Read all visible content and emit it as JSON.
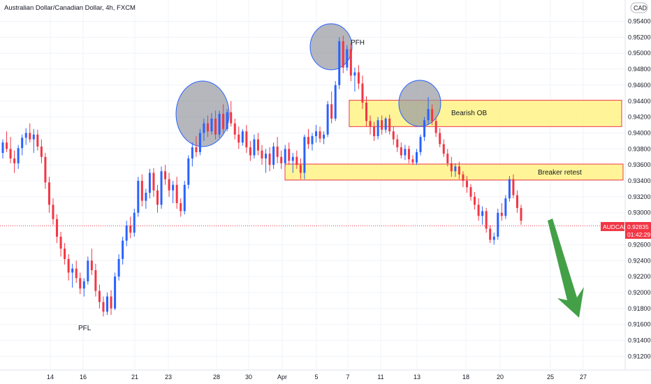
{
  "header": {
    "symbol_title": "Australian Dollar/Canadian Dollar, 4h, FXCM",
    "currency_badge": "CAD"
  },
  "price_tag": {
    "symbol": "AUDCAD",
    "price": "0.92835",
    "countdown": "01:42:29",
    "color": "#f23645"
  },
  "annotations": {
    "pfh": "PFH",
    "pfl": "PFL",
    "bearish_ob": "Bearish OB",
    "breaker_retest": "Breaker retest"
  },
  "colors": {
    "up": "#2962ff",
    "down": "#f23645",
    "zone_fill": "#fff176",
    "zone_border": "#f23645",
    "circle_fill": "#9598a1",
    "circle_stroke": "#2962ff",
    "arrow": "#43a047"
  },
  "chart_data": {
    "type": "candlestick",
    "title": "Australian Dollar/Canadian Dollar, 4h, FXCM",
    "xlabel": "",
    "ylabel": "",
    "ylim": [
      0.9115,
      0.9565
    ],
    "y_ticks": [
      "0.95400",
      "0.95200",
      "0.95000",
      "0.94800",
      "0.94600",
      "0.94400",
      "0.94200",
      "0.94000",
      "0.93800",
      "0.93600",
      "0.93400",
      "0.93200",
      "0.93000",
      "0.92600",
      "0.92400",
      "0.92200",
      "0.92000",
      "0.91800",
      "0.91600",
      "0.91400",
      "0.91200"
    ],
    "x_ticks": [
      "14",
      "16",
      "21",
      "23",
      "28",
      "30",
      "Apr",
      "5",
      "7",
      "11",
      "13",
      "18",
      "20",
      "25",
      "27"
    ],
    "current_price": 0.92835,
    "zones": [
      {
        "label": "Bearish OB",
        "from": 0.9408,
        "to": 0.9441
      },
      {
        "label": "Breaker retest",
        "from": 0.9341,
        "to": 0.9361
      }
    ],
    "candles": [
      [
        0.9375,
        0.9392,
        0.9368,
        0.9388
      ],
      [
        0.9388,
        0.9402,
        0.9376,
        0.938
      ],
      [
        0.938,
        0.9395,
        0.9362,
        0.9368
      ],
      [
        0.9368,
        0.9378,
        0.935,
        0.9362
      ],
      [
        0.9362,
        0.9385,
        0.9355,
        0.9381
      ],
      [
        0.9381,
        0.9398,
        0.9372,
        0.9394
      ],
      [
        0.9394,
        0.9406,
        0.9385,
        0.94
      ],
      [
        0.94,
        0.9412,
        0.9388,
        0.9392
      ],
      [
        0.9392,
        0.9405,
        0.9375,
        0.9398
      ],
      [
        0.9398,
        0.9404,
        0.9378,
        0.9383
      ],
      [
        0.9383,
        0.9392,
        0.9362,
        0.937
      ],
      [
        0.937,
        0.9375,
        0.933,
        0.9338
      ],
      [
        0.9338,
        0.9345,
        0.93,
        0.931
      ],
      [
        0.931,
        0.9318,
        0.9285,
        0.9292
      ],
      [
        0.9292,
        0.9298,
        0.9262,
        0.927
      ],
      [
        0.927,
        0.9276,
        0.9245,
        0.9255
      ],
      [
        0.9255,
        0.9262,
        0.9235,
        0.9242
      ],
      [
        0.9242,
        0.9248,
        0.9215,
        0.9225
      ],
      [
        0.9225,
        0.9236,
        0.9206,
        0.923
      ],
      [
        0.923,
        0.924,
        0.9212,
        0.9218
      ],
      [
        0.9218,
        0.9225,
        0.9198,
        0.9205
      ],
      [
        0.9205,
        0.9218,
        0.9195,
        0.9214
      ],
      [
        0.9214,
        0.9245,
        0.921,
        0.924
      ],
      [
        0.924,
        0.9255,
        0.9222,
        0.9228
      ],
      [
        0.9228,
        0.9236,
        0.9195,
        0.9202
      ],
      [
        0.9202,
        0.921,
        0.918,
        0.9188
      ],
      [
        0.9188,
        0.9195,
        0.917,
        0.9176
      ],
      [
        0.9176,
        0.92,
        0.9172,
        0.9195
      ],
      [
        0.9195,
        0.9203,
        0.9172,
        0.918
      ],
      [
        0.918,
        0.9225,
        0.9178,
        0.922
      ],
      [
        0.922,
        0.9248,
        0.9215,
        0.9242
      ],
      [
        0.9242,
        0.927,
        0.9235,
        0.9265
      ],
      [
        0.9265,
        0.929,
        0.9258,
        0.9284
      ],
      [
        0.9284,
        0.9295,
        0.9268,
        0.9275
      ],
      [
        0.9275,
        0.9305,
        0.927,
        0.93
      ],
      [
        0.93,
        0.9345,
        0.9295,
        0.934
      ],
      [
        0.934,
        0.9348,
        0.9308,
        0.9315
      ],
      [
        0.9315,
        0.933,
        0.9305,
        0.9325
      ],
      [
        0.9325,
        0.9355,
        0.9318,
        0.935
      ],
      [
        0.935,
        0.9356,
        0.932,
        0.9328
      ],
      [
        0.9328,
        0.9335,
        0.93,
        0.931
      ],
      [
        0.931,
        0.9358,
        0.9305,
        0.9352
      ],
      [
        0.9352,
        0.936,
        0.9335,
        0.9342
      ],
      [
        0.9342,
        0.935,
        0.932,
        0.9328
      ],
      [
        0.9328,
        0.934,
        0.9312,
        0.9335
      ],
      [
        0.9335,
        0.9345,
        0.9305,
        0.9312
      ],
      [
        0.9312,
        0.9318,
        0.9295,
        0.9302
      ],
      [
        0.9302,
        0.934,
        0.9298,
        0.9335
      ],
      [
        0.9335,
        0.9372,
        0.933,
        0.9368
      ],
      [
        0.9368,
        0.9388,
        0.9358,
        0.9382
      ],
      [
        0.9382,
        0.9396,
        0.937,
        0.9376
      ],
      [
        0.9376,
        0.9405,
        0.9372,
        0.94
      ],
      [
        0.94,
        0.9418,
        0.939,
        0.9412
      ],
      [
        0.9412,
        0.9422,
        0.9395,
        0.9402
      ],
      [
        0.9402,
        0.9425,
        0.9398,
        0.9418
      ],
      [
        0.9418,
        0.9428,
        0.9392,
        0.9398
      ],
      [
        0.9398,
        0.9428,
        0.9394,
        0.9424
      ],
      [
        0.9424,
        0.9436,
        0.94,
        0.9405
      ],
      [
        0.9405,
        0.943,
        0.9402,
        0.9426
      ],
      [
        0.9426,
        0.944,
        0.9408,
        0.9412
      ],
      [
        0.9412,
        0.9418,
        0.9392,
        0.9398
      ],
      [
        0.9398,
        0.9408,
        0.938,
        0.9388
      ],
      [
        0.9388,
        0.9405,
        0.9384,
        0.9402
      ],
      [
        0.9402,
        0.941,
        0.9375,
        0.9382
      ],
      [
        0.9382,
        0.939,
        0.9365,
        0.9372
      ],
      [
        0.9372,
        0.9398,
        0.9368,
        0.9392
      ],
      [
        0.9392,
        0.94,
        0.9372,
        0.9378
      ],
      [
        0.9378,
        0.9385,
        0.936,
        0.9368
      ],
      [
        0.9368,
        0.938,
        0.935,
        0.9374
      ],
      [
        0.9374,
        0.9382,
        0.9352,
        0.936
      ],
      [
        0.936,
        0.9388,
        0.9355,
        0.9383
      ],
      [
        0.9383,
        0.9395,
        0.9362,
        0.937
      ],
      [
        0.937,
        0.9378,
        0.9355,
        0.9362
      ],
      [
        0.9362,
        0.9385,
        0.9358,
        0.938
      ],
      [
        0.938,
        0.9388,
        0.936,
        0.9365
      ],
      [
        0.9365,
        0.9375,
        0.935,
        0.937
      ],
      [
        0.937,
        0.9378,
        0.9355,
        0.936
      ],
      [
        0.936,
        0.9368,
        0.9342,
        0.935
      ],
      [
        0.935,
        0.9398,
        0.9342,
        0.9395
      ],
      [
        0.9395,
        0.9405,
        0.938,
        0.9386
      ],
      [
        0.9386,
        0.94,
        0.9378,
        0.9396
      ],
      [
        0.9396,
        0.941,
        0.9388,
        0.9402
      ],
      [
        0.9402,
        0.9408,
        0.9388,
        0.9393
      ],
      [
        0.9393,
        0.9402,
        0.9386,
        0.9398
      ],
      [
        0.9398,
        0.944,
        0.9395,
        0.9436
      ],
      [
        0.9436,
        0.9452,
        0.9412,
        0.9418
      ],
      [
        0.9418,
        0.9465,
        0.9415,
        0.946
      ],
      [
        0.946,
        0.952,
        0.9455,
        0.9515
      ],
      [
        0.9515,
        0.9522,
        0.9475,
        0.9482
      ],
      [
        0.9482,
        0.951,
        0.9478,
        0.9505
      ],
      [
        0.9505,
        0.9512,
        0.9465,
        0.9472
      ],
      [
        0.9472,
        0.9482,
        0.9452,
        0.9476
      ],
      [
        0.9476,
        0.9485,
        0.9455,
        0.9462
      ],
      [
        0.9462,
        0.9472,
        0.943,
        0.9438
      ],
      [
        0.9438,
        0.9446,
        0.9408,
        0.9415
      ],
      [
        0.9415,
        0.9422,
        0.9398,
        0.9408
      ],
      [
        0.9408,
        0.9414,
        0.939,
        0.9396
      ],
      [
        0.9396,
        0.942,
        0.9392,
        0.9416
      ],
      [
        0.9416,
        0.9422,
        0.9398,
        0.9404
      ],
      [
        0.9404,
        0.942,
        0.94,
        0.9418
      ],
      [
        0.9418,
        0.9423,
        0.9398,
        0.9402
      ],
      [
        0.9402,
        0.9408,
        0.9385,
        0.9392
      ],
      [
        0.9392,
        0.9398,
        0.9376,
        0.9382
      ],
      [
        0.9382,
        0.9388,
        0.9368,
        0.9372
      ],
      [
        0.9372,
        0.9385,
        0.9366,
        0.938
      ],
      [
        0.938,
        0.9384,
        0.9362,
        0.9367
      ],
      [
        0.9367,
        0.9372,
        0.936,
        0.9363
      ],
      [
        0.9363,
        0.938,
        0.936,
        0.9376
      ],
      [
        0.9376,
        0.9398,
        0.9372,
        0.9395
      ],
      [
        0.9395,
        0.942,
        0.939,
        0.9416
      ],
      [
        0.9416,
        0.9445,
        0.941,
        0.943
      ],
      [
        0.943,
        0.9436,
        0.941,
        0.9415
      ],
      [
        0.9415,
        0.942,
        0.9395,
        0.94
      ],
      [
        0.94,
        0.9406,
        0.9382,
        0.9386
      ],
      [
        0.9386,
        0.9392,
        0.937,
        0.9374
      ],
      [
        0.9374,
        0.938,
        0.9358,
        0.9362
      ],
      [
        0.9362,
        0.937,
        0.9345,
        0.9352
      ],
      [
        0.9352,
        0.9362,
        0.9345,
        0.9358
      ],
      [
        0.9358,
        0.9364,
        0.9342,
        0.9348
      ],
      [
        0.9348,
        0.9352,
        0.9332,
        0.934
      ],
      [
        0.934,
        0.9346,
        0.9325,
        0.9332
      ],
      [
        0.9332,
        0.9336,
        0.9315,
        0.932
      ],
      [
        0.932,
        0.9326,
        0.9304,
        0.931
      ],
      [
        0.931,
        0.9318,
        0.929,
        0.9296
      ],
      [
        0.9296,
        0.9308,
        0.9285,
        0.9302
      ],
      [
        0.9302,
        0.9306,
        0.9275,
        0.928
      ],
      [
        0.928,
        0.9284,
        0.9262,
        0.9266
      ],
      [
        0.9266,
        0.9275,
        0.926,
        0.927
      ],
      [
        0.927,
        0.9305,
        0.9266,
        0.93
      ],
      [
        0.93,
        0.9312,
        0.929,
        0.9296
      ],
      [
        0.9296,
        0.9322,
        0.9292,
        0.9318
      ],
      [
        0.9318,
        0.9346,
        0.9314,
        0.9342
      ],
      [
        0.9342,
        0.9348,
        0.9318,
        0.9322
      ],
      [
        0.9322,
        0.9328,
        0.93,
        0.9306
      ],
      [
        0.9306,
        0.931,
        0.9285,
        0.929
      ]
    ]
  }
}
